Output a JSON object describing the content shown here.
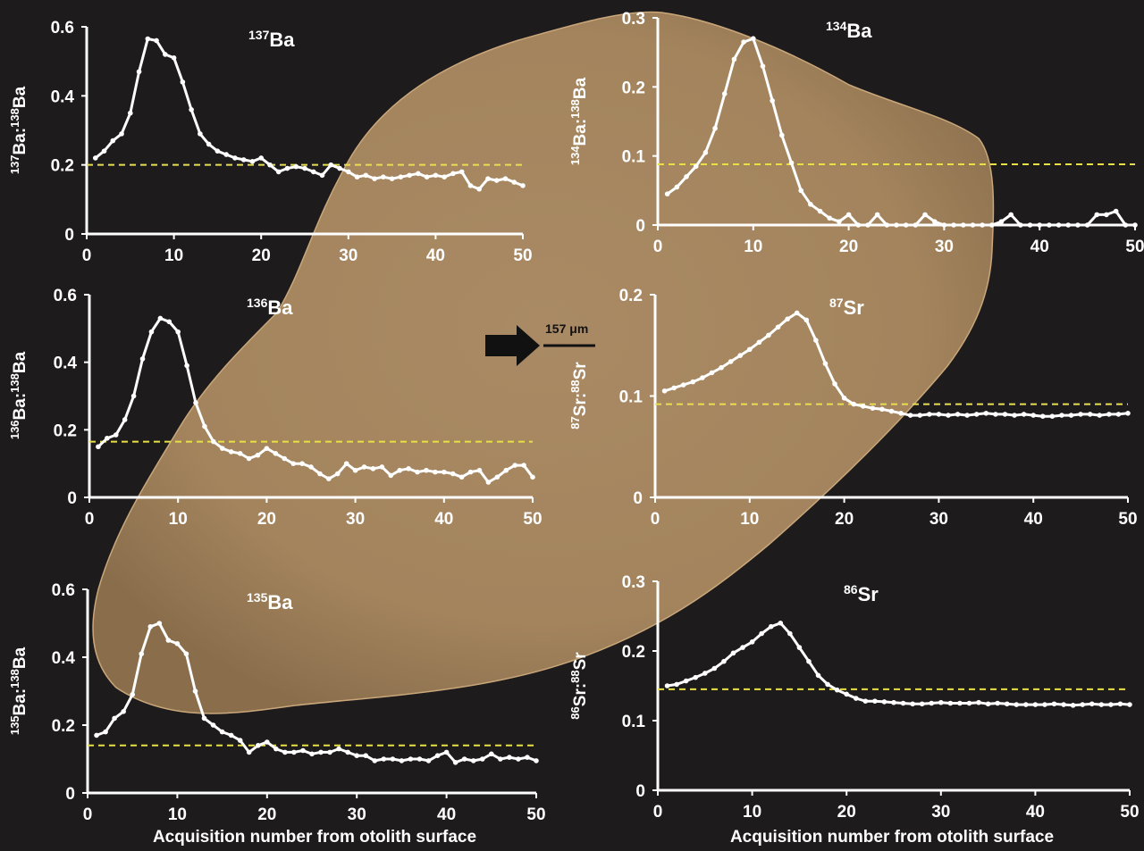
{
  "figure": {
    "scale_bar_label": "157 μm",
    "colors": {
      "background": "#1d1b1c",
      "otolith": "#a98a64",
      "data_line": "#ffffff",
      "reference_line": "#e8e04a"
    }
  },
  "chart_data": [
    {
      "id": "ba137",
      "type": "line",
      "title_sup": "137",
      "title_base": "Ba",
      "ylabel": "137Ba:138Ba",
      "ylabel_parts": [
        {
          "sup": "137"
        },
        {
          "t": "Ba:"
        },
        {
          "sup": "138"
        },
        {
          "t": "Ba"
        }
      ],
      "xlabel": "",
      "xlim": [
        0,
        50
      ],
      "ylim": [
        0,
        0.6
      ],
      "xticks": [
        0,
        10,
        20,
        30,
        40,
        50
      ],
      "yticks": [
        0,
        0.2,
        0.4,
        0.6
      ],
      "reference_y": 0.2,
      "x": [
        1,
        2,
        3,
        4,
        5,
        6,
        7,
        8,
        9,
        10,
        11,
        12,
        13,
        14,
        15,
        16,
        17,
        18,
        19,
        20,
        21,
        22,
        23,
        24,
        25,
        26,
        27,
        28,
        29,
        30,
        31,
        32,
        33,
        34,
        35,
        36,
        37,
        38,
        39,
        40,
        41,
        42,
        43,
        44,
        45,
        46,
        47,
        48,
        49,
        50
      ],
      "values": [
        0.22,
        0.24,
        0.27,
        0.29,
        0.35,
        0.47,
        0.565,
        0.56,
        0.52,
        0.51,
        0.44,
        0.36,
        0.29,
        0.26,
        0.24,
        0.23,
        0.22,
        0.215,
        0.21,
        0.22,
        0.2,
        0.18,
        0.19,
        0.195,
        0.19,
        0.18,
        0.17,
        0.2,
        0.19,
        0.18,
        0.165,
        0.17,
        0.16,
        0.165,
        0.16,
        0.165,
        0.17,
        0.175,
        0.165,
        0.17,
        0.165,
        0.175,
        0.18,
        0.14,
        0.13,
        0.16,
        0.155,
        0.16,
        0.15,
        0.14
      ]
    },
    {
      "id": "ba134",
      "type": "line",
      "title_sup": "134",
      "title_base": "Ba",
      "ylabel": "134Ba:138Ba",
      "ylabel_parts": [
        {
          "sup": "134"
        },
        {
          "t": "Ba:"
        },
        {
          "sup": "138"
        },
        {
          "t": "Ba"
        }
      ],
      "xlabel": "",
      "xlim": [
        0,
        50
      ],
      "ylim": [
        0,
        0.3
      ],
      "xticks": [
        0,
        10,
        20,
        30,
        40,
        50
      ],
      "yticks": [
        0,
        0.1,
        0.2,
        0.3
      ],
      "reference_y": 0.088,
      "x": [
        1,
        2,
        3,
        4,
        5,
        6,
        7,
        8,
        9,
        10,
        11,
        12,
        13,
        14,
        15,
        16,
        17,
        18,
        19,
        20,
        21,
        22,
        23,
        24,
        25,
        26,
        27,
        28,
        29,
        30,
        31,
        32,
        33,
        34,
        35,
        36,
        37,
        38,
        39,
        40,
        41,
        42,
        43,
        44,
        45,
        46,
        47,
        48,
        49,
        50
      ],
      "values": [
        0.045,
        0.055,
        0.07,
        0.085,
        0.105,
        0.14,
        0.19,
        0.24,
        0.265,
        0.27,
        0.23,
        0.18,
        0.13,
        0.09,
        0.05,
        0.03,
        0.02,
        0.01,
        0.005,
        0.015,
        0.0,
        0.0,
        0.015,
        0.0,
        0.0,
        0.0,
        0.0,
        0.015,
        0.005,
        0.0,
        0.0,
        0.0,
        0.0,
        0.0,
        0.0,
        0.005,
        0.015,
        0.0,
        0.0,
        0.0,
        0.0,
        0.0,
        0.0,
        0.0,
        0.0,
        0.015,
        0.015,
        0.02,
        0.0,
        0.0
      ]
    },
    {
      "id": "ba136",
      "type": "line",
      "title_sup": "136",
      "title_base": "Ba",
      "ylabel": "136Ba:138Ba",
      "ylabel_parts": [
        {
          "sup": "136"
        },
        {
          "t": "Ba:"
        },
        {
          "sup": "138"
        },
        {
          "t": "Ba"
        }
      ],
      "xlabel": "",
      "xlim": [
        0,
        50
      ],
      "ylim": [
        0,
        0.6
      ],
      "xticks": [
        0,
        10,
        20,
        30,
        40,
        50
      ],
      "yticks": [
        0,
        0.2,
        0.4,
        0.6
      ],
      "reference_y": 0.165,
      "x": [
        1,
        2,
        3,
        4,
        5,
        6,
        7,
        8,
        9,
        10,
        11,
        12,
        13,
        14,
        15,
        16,
        17,
        18,
        19,
        20,
        21,
        22,
        23,
        24,
        25,
        26,
        27,
        28,
        29,
        30,
        31,
        32,
        33,
        34,
        35,
        36,
        37,
        38,
        39,
        40,
        41,
        42,
        43,
        44,
        45,
        46,
        47,
        48,
        49,
        50
      ],
      "values": [
        0.15,
        0.175,
        0.185,
        0.23,
        0.3,
        0.41,
        0.49,
        0.53,
        0.52,
        0.49,
        0.39,
        0.28,
        0.21,
        0.165,
        0.145,
        0.135,
        0.13,
        0.115,
        0.125,
        0.145,
        0.13,
        0.115,
        0.1,
        0.1,
        0.09,
        0.07,
        0.055,
        0.07,
        0.1,
        0.08,
        0.09,
        0.085,
        0.09,
        0.065,
        0.08,
        0.085,
        0.075,
        0.08,
        0.075,
        0.075,
        0.07,
        0.06,
        0.075,
        0.08,
        0.045,
        0.06,
        0.08,
        0.095,
        0.095,
        0.06
      ]
    },
    {
      "id": "sr87",
      "type": "line",
      "title_sup": "87",
      "title_base": "Sr",
      "ylabel": "87Sr:88Sr",
      "ylabel_parts": [
        {
          "sup": "87"
        },
        {
          "t": "Sr:"
        },
        {
          "sup": "88"
        },
        {
          "t": "Sr"
        }
      ],
      "xlabel": "",
      "xlim": [
        0,
        50
      ],
      "ylim": [
        0,
        0.2
      ],
      "xticks": [
        0,
        10,
        20,
        30,
        40,
        50
      ],
      "yticks": [
        0,
        0.1,
        0.2
      ],
      "reference_y": 0.092,
      "x": [
        1,
        2,
        3,
        4,
        5,
        6,
        7,
        8,
        9,
        10,
        11,
        12,
        13,
        14,
        15,
        16,
        17,
        18,
        19,
        20,
        21,
        22,
        23,
        24,
        25,
        26,
        27,
        28,
        29,
        30,
        31,
        32,
        33,
        34,
        35,
        36,
        37,
        38,
        39,
        40,
        41,
        42,
        43,
        44,
        45,
        46,
        47,
        48,
        49,
        50
      ],
      "values": [
        0.105,
        0.108,
        0.111,
        0.114,
        0.118,
        0.123,
        0.128,
        0.134,
        0.14,
        0.146,
        0.153,
        0.16,
        0.168,
        0.176,
        0.182,
        0.175,
        0.155,
        0.132,
        0.112,
        0.098,
        0.092,
        0.09,
        0.088,
        0.087,
        0.085,
        0.083,
        0.081,
        0.081,
        0.082,
        0.082,
        0.081,
        0.082,
        0.081,
        0.082,
        0.083,
        0.082,
        0.082,
        0.081,
        0.082,
        0.081,
        0.08,
        0.08,
        0.081,
        0.081,
        0.082,
        0.082,
        0.081,
        0.082,
        0.082,
        0.083
      ]
    },
    {
      "id": "ba135",
      "type": "line",
      "title_sup": "135",
      "title_base": "Ba",
      "ylabel": "135Ba:138Ba",
      "ylabel_parts": [
        {
          "sup": "135"
        },
        {
          "t": "Ba:"
        },
        {
          "sup": "138"
        },
        {
          "t": "Ba"
        }
      ],
      "xlabel": "Acquisition number from otolith surface",
      "xlim": [
        0,
        50
      ],
      "ylim": [
        0,
        0.6
      ],
      "xticks": [
        0,
        10,
        20,
        30,
        40,
        50
      ],
      "yticks": [
        0,
        0.2,
        0.4,
        0.6
      ],
      "reference_y": 0.14,
      "x": [
        1,
        2,
        3,
        4,
        5,
        6,
        7,
        8,
        9,
        10,
        11,
        12,
        13,
        14,
        15,
        16,
        17,
        18,
        19,
        20,
        21,
        22,
        23,
        24,
        25,
        26,
        27,
        28,
        29,
        30,
        31,
        32,
        33,
        34,
        35,
        36,
        37,
        38,
        39,
        40,
        41,
        42,
        43,
        44,
        45,
        46,
        47,
        48,
        49,
        50
      ],
      "values": [
        0.17,
        0.18,
        0.22,
        0.24,
        0.29,
        0.41,
        0.49,
        0.5,
        0.45,
        0.44,
        0.41,
        0.3,
        0.22,
        0.2,
        0.18,
        0.17,
        0.155,
        0.12,
        0.14,
        0.15,
        0.13,
        0.12,
        0.12,
        0.125,
        0.115,
        0.12,
        0.12,
        0.13,
        0.12,
        0.11,
        0.11,
        0.095,
        0.1,
        0.1,
        0.095,
        0.1,
        0.1,
        0.095,
        0.11,
        0.12,
        0.09,
        0.1,
        0.095,
        0.1,
        0.115,
        0.1,
        0.105,
        0.1,
        0.105,
        0.095
      ]
    },
    {
      "id": "sr86",
      "type": "line",
      "title_sup": "86",
      "title_base": "Sr",
      "ylabel": "86Sr:88Sr",
      "ylabel_parts": [
        {
          "sup": "86"
        },
        {
          "t": "Sr:"
        },
        {
          "sup": "88"
        },
        {
          "t": "Sr"
        }
      ],
      "xlabel": "Acquisition number  from otolith surface",
      "xlim": [
        0,
        50
      ],
      "ylim": [
        0,
        0.3
      ],
      "xticks": [
        0,
        10,
        20,
        30,
        40,
        50
      ],
      "yticks": [
        0,
        0.1,
        0.2,
        0.3
      ],
      "reference_y": 0.145,
      "x": [
        1,
        2,
        3,
        4,
        5,
        6,
        7,
        8,
        9,
        10,
        11,
        12,
        13,
        14,
        15,
        16,
        17,
        18,
        19,
        20,
        21,
        22,
        23,
        24,
        25,
        26,
        27,
        28,
        29,
        30,
        31,
        32,
        33,
        34,
        35,
        36,
        37,
        38,
        39,
        40,
        41,
        42,
        43,
        44,
        45,
        46,
        47,
        48,
        49,
        50
      ],
      "values": [
        0.15,
        0.152,
        0.157,
        0.162,
        0.168,
        0.175,
        0.185,
        0.197,
        0.205,
        0.213,
        0.225,
        0.235,
        0.24,
        0.225,
        0.205,
        0.185,
        0.165,
        0.152,
        0.144,
        0.138,
        0.132,
        0.128,
        0.128,
        0.127,
        0.126,
        0.125,
        0.124,
        0.124,
        0.125,
        0.126,
        0.125,
        0.125,
        0.125,
        0.126,
        0.124,
        0.125,
        0.124,
        0.123,
        0.123,
        0.123,
        0.123,
        0.124,
        0.123,
        0.122,
        0.123,
        0.124,
        0.123,
        0.123,
        0.124,
        0.123
      ]
    }
  ]
}
